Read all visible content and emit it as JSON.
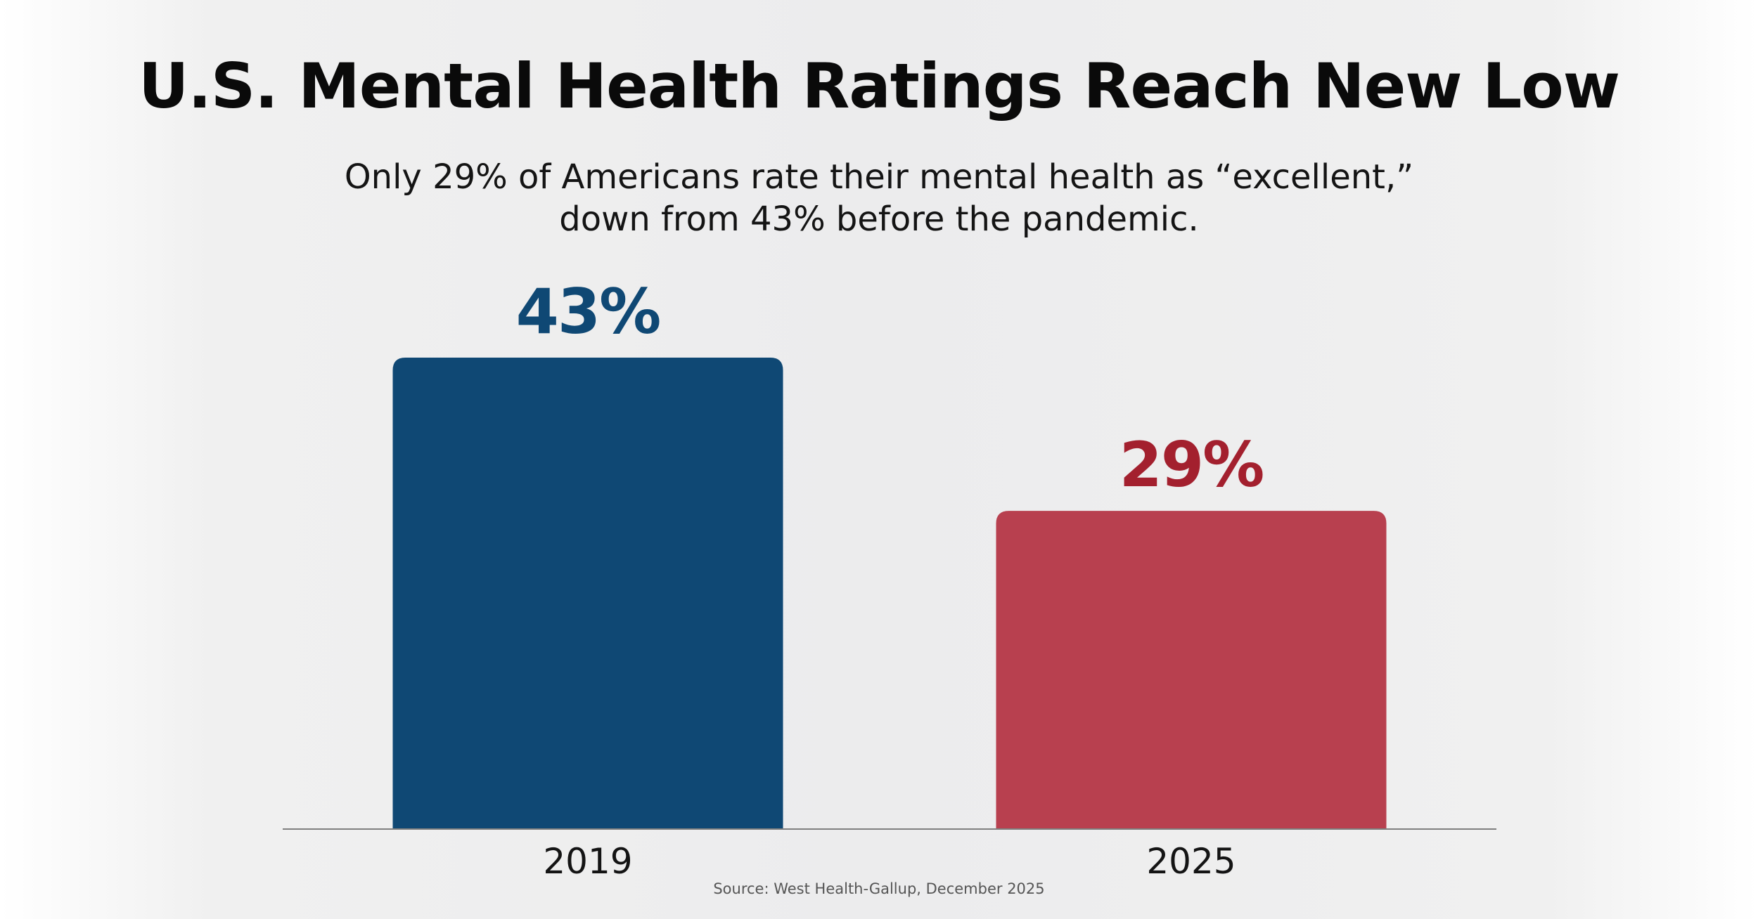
{
  "header": {
    "title": "U.S. Mental Health Ratings Reach New Low",
    "subtitle_lines": [
      "Only 29% of Americans rate their mental health as “excellent,”",
      "down from 43% before the pandemic."
    ]
  },
  "footer": {
    "source": "Source: West Health-Gallup, December 2025"
  },
  "chart_data": {
    "type": "bar",
    "categories": [
      "2019",
      "2025"
    ],
    "values": [
      43,
      29
    ],
    "value_labels": [
      "43%",
      "29%"
    ],
    "bar_colors": [
      "#0f4874",
      "#b8404f"
    ],
    "label_colors": [
      "#0f4874",
      "#a3202e"
    ],
    "ylim": [
      0,
      50
    ],
    "grid": false,
    "legend": "none",
    "xlabel": "",
    "ylabel": ""
  }
}
